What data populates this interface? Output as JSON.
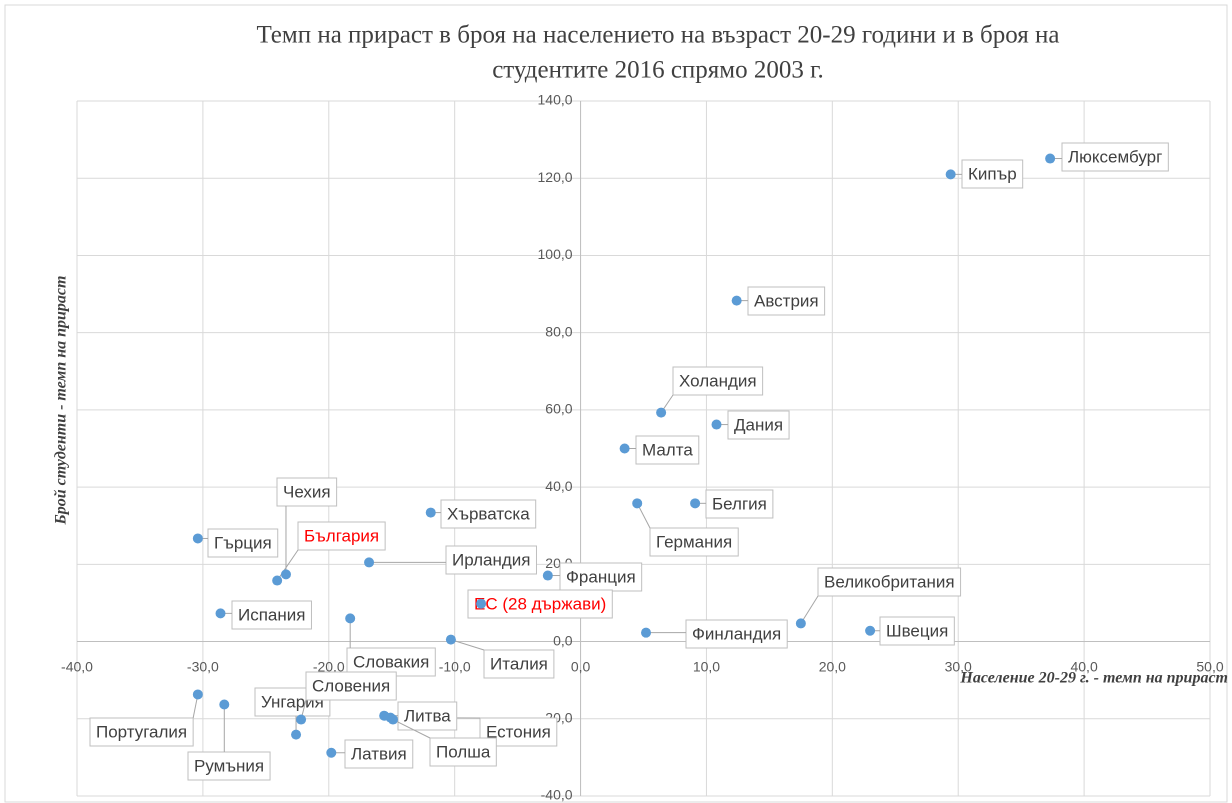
{
  "chart_data": {
    "type": "scatter",
    "title": [
      "Темп на прираст в броя на населението на възраст 20-29 години и в броя на",
      "студентите 2016 спрямо 2003 г."
    ],
    "x_label": "Население 20-29 г. - темп на прираст",
    "y_label": "Брой студенти - темп на прираст",
    "color": "#5b9bd5",
    "grid": true,
    "xlim": [
      -40,
      50
    ],
    "ylim": [
      -40,
      140
    ],
    "xticks": [
      {
        "value": -40,
        "label": "-40,0"
      },
      {
        "value": -30,
        "label": "-30,0"
      },
      {
        "value": -20,
        "label": "-20,0"
      },
      {
        "value": -10,
        "label": "-10,0"
      },
      {
        "value": 0,
        "label": "0,0"
      },
      {
        "value": 10,
        "label": "10,0"
      },
      {
        "value": 20,
        "label": "20,0"
      },
      {
        "value": 30,
        "label": "30,0"
      },
      {
        "value": 40,
        "label": "40,0"
      },
      {
        "value": 50,
        "label": "50,0"
      }
    ],
    "yticks": [
      {
        "value": -40,
        "label": "-40,0"
      },
      {
        "value": -20,
        "label": "-20,0"
      },
      {
        "value": 0,
        "label": "0,0"
      },
      {
        "value": 20,
        "label": "20,0"
      },
      {
        "value": 40,
        "label": "40,0"
      },
      {
        "value": 60,
        "label": "60,0"
      },
      {
        "value": 80,
        "label": "80,0"
      },
      {
        "value": 100,
        "label": "100,0"
      },
      {
        "value": 120,
        "label": "120,0"
      },
      {
        "value": 140,
        "label": "140,0"
      }
    ],
    "points": [
      {
        "label": "Люксембург",
        "x": 37.3,
        "y": 125.1,
        "label_color": "#404040"
      },
      {
        "label": "Кипър",
        "x": 29.4,
        "y": 121.0,
        "label_color": "#404040"
      },
      {
        "label": "Австрия",
        "x": 12.4,
        "y": 88.3,
        "label_color": "#404040"
      },
      {
        "label": "Холандия",
        "x": 6.4,
        "y": 59.3,
        "label_color": "#404040"
      },
      {
        "label": "Дания",
        "x": 10.8,
        "y": 56.2,
        "label_color": "#404040"
      },
      {
        "label": "Малта",
        "x": 3.5,
        "y": 50.0,
        "label_color": "#404040"
      },
      {
        "label": "Белгия",
        "x": 9.1,
        "y": 35.8,
        "label_color": "#404040"
      },
      {
        "label": "Германия",
        "x": 4.5,
        "y": 35.8,
        "label_color": "#404040"
      },
      {
        "label": "Хърватска",
        "x": -11.9,
        "y": 33.4,
        "label_color": "#404040"
      },
      {
        "label": "Гърция",
        "x": -30.4,
        "y": 26.7,
        "label_color": "#404040"
      },
      {
        "label": "Чехия",
        "x": -23.4,
        "y": 17.4,
        "label_color": "#404040"
      },
      {
        "label": "България",
        "x": -24.1,
        "y": 15.8,
        "label_color": "#ff0000"
      },
      {
        "label": "Ирландия",
        "x": -16.8,
        "y": 20.5,
        "label_color": "#404040"
      },
      {
        "label": "Франция",
        "x": -2.6,
        "y": 17.1,
        "label_color": "#404040"
      },
      {
        "label": "ЕС (28 държави)",
        "x": -7.9,
        "y": 9.8,
        "label_color": "#ff0000"
      },
      {
        "label": "Испания",
        "x": -28.6,
        "y": 7.3,
        "label_color": "#404040"
      },
      {
        "label": "Словакия",
        "x": -18.3,
        "y": 6.0,
        "label_color": "#404040"
      },
      {
        "label": "Италия",
        "x": -10.3,
        "y": 0.5,
        "label_color": "#404040"
      },
      {
        "label": "Финландия",
        "x": 5.2,
        "y": 2.3,
        "label_color": "#404040"
      },
      {
        "label": "Великобритания",
        "x": 17.5,
        "y": 4.7,
        "label_color": "#404040"
      },
      {
        "label": "Швеция",
        "x": 23.0,
        "y": 2.8,
        "label_color": "#404040"
      },
      {
        "label": "Португалия",
        "x": -30.4,
        "y": -13.7,
        "label_color": "#404040"
      },
      {
        "label": "Румъния",
        "x": -28.3,
        "y": -16.3,
        "label_color": "#404040"
      },
      {
        "label": "Унгария",
        "x": -22.6,
        "y": -24.1,
        "label_color": "#404040"
      },
      {
        "label": "Словения",
        "x": -22.2,
        "y": -20.2,
        "label_color": "#404040"
      },
      {
        "label": "Естония",
        "x": -15.1,
        "y": -19.7,
        "label_color": "#404040"
      },
      {
        "label": "Литва",
        "x": -15.6,
        "y": -19.2,
        "label_color": "#404040"
      },
      {
        "label": "Полша",
        "x": -14.9,
        "y": -20.2,
        "label_color": "#404040"
      },
      {
        "label": "Латвия",
        "x": -19.8,
        "y": -28.8,
        "label_color": "#404040"
      }
    ]
  }
}
